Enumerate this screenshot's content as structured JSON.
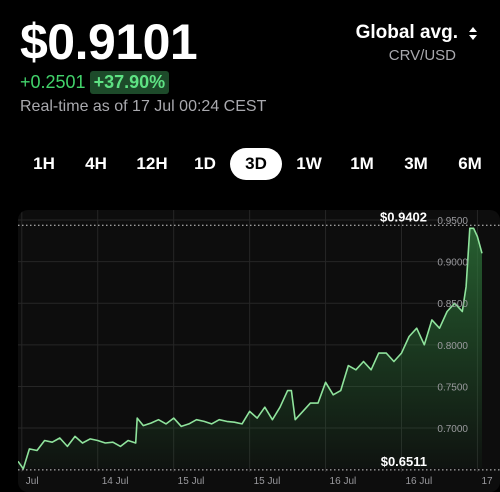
{
  "header": {
    "price": "$0.9101",
    "change_abs": "+0.2501",
    "change_pct": "+37.90%",
    "timestamp": "Real-time as of 17 Jul 00:24 CEST"
  },
  "source": {
    "title": "Global avg.",
    "pair": "CRV/USD",
    "icon": "sort-icon"
  },
  "ranges": [
    {
      "label": "1H",
      "active": false
    },
    {
      "label": "4H",
      "active": false
    },
    {
      "label": "12H",
      "active": false
    },
    {
      "label": "1D",
      "active": false
    },
    {
      "label": "3D",
      "active": true
    },
    {
      "label": "1W",
      "active": false
    },
    {
      "label": "1M",
      "active": false
    },
    {
      "label": "3M",
      "active": false
    },
    {
      "label": "6M",
      "active": false
    }
  ],
  "colors": {
    "line": "#8fe39c",
    "fill_top": "#2f7a3c",
    "grid": "#262626",
    "positive": "#42d36b"
  },
  "chart_data": {
    "type": "area",
    "high_label": "$0.9402",
    "low_label": "$0.6511",
    "y_ticks": [
      {
        "value": 0.95,
        "label": "0.9500"
      },
      {
        "value": 0.9,
        "label": "0.9000"
      },
      {
        "value": 0.85,
        "label": "0.8500"
      },
      {
        "value": 0.8,
        "label": "0.8000"
      },
      {
        "value": 0.75,
        "label": "0.7500"
      },
      {
        "value": 0.7,
        "label": "0.7000"
      }
    ],
    "x_ticks": [
      {
        "value": 0,
        "label": "Jul"
      },
      {
        "value": 1,
        "label": "14 Jul"
      },
      {
        "value": 2,
        "label": "15 Jul"
      },
      {
        "value": 3,
        "label": "15 Jul"
      },
      {
        "value": 4,
        "label": "16 Jul"
      },
      {
        "value": 5,
        "label": "16 Jul"
      },
      {
        "value": 6,
        "label": "17"
      }
    ],
    "ylim": [
      0.652,
      0.962
    ],
    "xlim": [
      -0.05,
      6.06
    ],
    "grid": true,
    "x": [
      -0.05,
      0.02,
      0.1,
      0.2,
      0.3,
      0.4,
      0.5,
      0.6,
      0.7,
      0.8,
      0.9,
      1.0,
      1.1,
      1.2,
      1.3,
      1.4,
      1.5,
      1.52,
      1.6,
      1.7,
      1.8,
      1.9,
      2.0,
      2.1,
      2.2,
      2.3,
      2.4,
      2.5,
      2.6,
      2.7,
      2.8,
      2.9,
      3.0,
      3.1,
      3.2,
      3.3,
      3.4,
      3.5,
      3.55,
      3.6,
      3.7,
      3.8,
      3.9,
      4.0,
      4.1,
      4.2,
      4.3,
      4.4,
      4.5,
      4.6,
      4.7,
      4.8,
      4.9,
      5.0,
      5.1,
      5.2,
      5.3,
      5.4,
      5.5,
      5.6,
      5.7,
      5.8,
      5.85,
      5.9,
      5.95,
      6.0,
      6.06
    ],
    "values": [
      0.66,
      0.651,
      0.675,
      0.673,
      0.685,
      0.683,
      0.688,
      0.678,
      0.69,
      0.682,
      0.687,
      0.685,
      0.682,
      0.683,
      0.678,
      0.685,
      0.682,
      0.712,
      0.703,
      0.706,
      0.71,
      0.705,
      0.712,
      0.702,
      0.705,
      0.71,
      0.708,
      0.705,
      0.71,
      0.708,
      0.707,
      0.705,
      0.72,
      0.712,
      0.725,
      0.71,
      0.725,
      0.745,
      0.745,
      0.71,
      0.72,
      0.73,
      0.73,
      0.755,
      0.74,
      0.745,
      0.775,
      0.77,
      0.78,
      0.77,
      0.79,
      0.79,
      0.78,
      0.79,
      0.81,
      0.82,
      0.8,
      0.83,
      0.82,
      0.84,
      0.85,
      0.84,
      0.87,
      0.94,
      0.94,
      0.93,
      0.91
    ]
  }
}
